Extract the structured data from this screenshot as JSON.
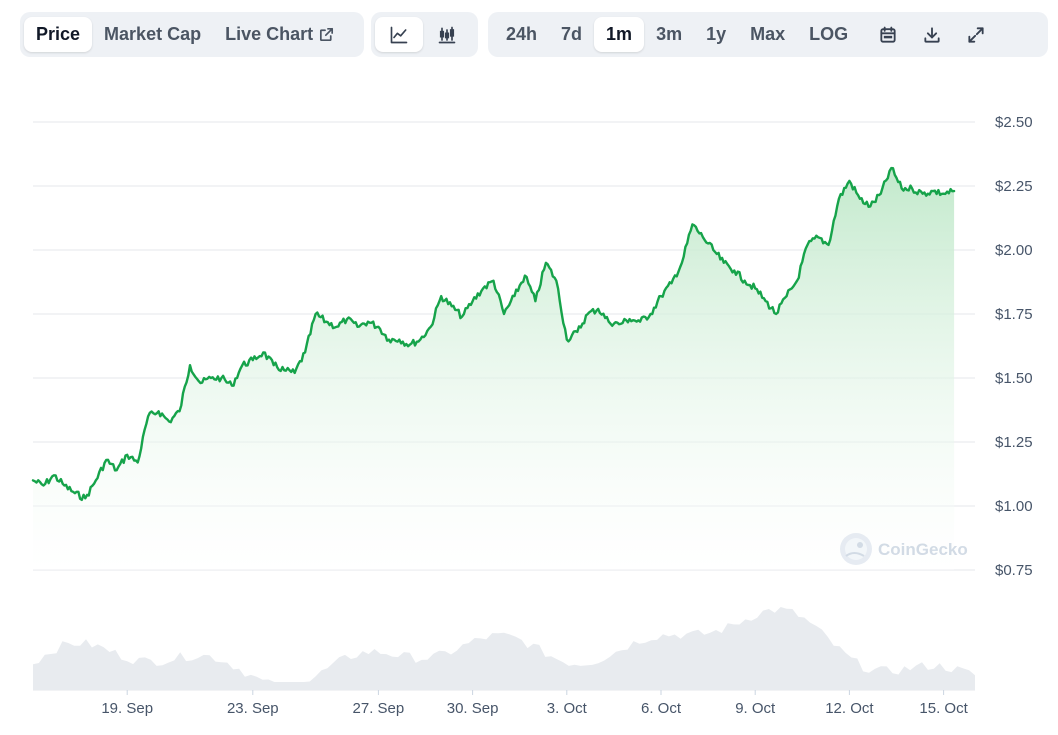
{
  "toolbar": {
    "tabs": [
      {
        "label": "Price",
        "active": true
      },
      {
        "label": "Market Cap",
        "active": false
      },
      {
        "label": "Live Chart",
        "active": false
      }
    ],
    "live_chart_icon": "external-link-icon",
    "chart_type_buttons": [
      {
        "icon": "line-chart-icon",
        "active": true
      },
      {
        "icon": "candlestick-chart-icon",
        "active": false
      }
    ],
    "ranges": [
      {
        "label": "24h",
        "active": false
      },
      {
        "label": "7d",
        "active": false
      },
      {
        "label": "1m",
        "active": true
      },
      {
        "label": "3m",
        "active": false
      },
      {
        "label": "1y",
        "active": false
      },
      {
        "label": "Max",
        "active": false
      },
      {
        "label": "LOG",
        "active": false
      }
    ],
    "tools": [
      "calendar-icon",
      "download-icon",
      "expand-icon"
    ]
  },
  "watermark": {
    "text": "CoinGecko",
    "icon": "coingecko-logo-icon"
  },
  "colors": {
    "line": "#16a34a",
    "fill_top": "#bfe8c9",
    "grid": "#e5e7eb",
    "volume": "#e8ebef",
    "toolbar_bg": "#eef1f5"
  },
  "chart_data": {
    "type": "area",
    "title": "",
    "xlabel": "",
    "ylabel": "",
    "x_range": [
      "2024-09-16",
      "2024-10-16"
    ],
    "ylim": [
      0.75,
      2.5
    ],
    "yticks": [
      0.75,
      1.0,
      1.25,
      1.5,
      1.75,
      2.0,
      2.25,
      2.5
    ],
    "ytick_labels": [
      "$0.75",
      "$1.00",
      "$1.25",
      "$1.50",
      "$1.75",
      "$2.00",
      "$2.25",
      "$2.50"
    ],
    "xticks": [
      {
        "label": "19. Sep",
        "date": "2024-09-19"
      },
      {
        "label": "23. Sep",
        "date": "2024-09-23"
      },
      {
        "label": "27. Sep",
        "date": "2024-09-27"
      },
      {
        "label": "30. Sep",
        "date": "2024-09-30"
      },
      {
        "label": "3. Oct",
        "date": "2024-10-03"
      },
      {
        "label": "6. Oct",
        "date": "2024-10-06"
      },
      {
        "label": "9. Oct",
        "date": "2024-10-09"
      },
      {
        "label": "12. Oct",
        "date": "2024-10-12"
      },
      {
        "label": "15. Oct",
        "date": "2024-10-15"
      }
    ],
    "grid": true,
    "legend": "none",
    "series": [
      {
        "points": [
          [
            "2024-09-16 00:00",
            1.1
          ],
          [
            "2024-09-16 08:00",
            1.08
          ],
          [
            "2024-09-16 16:00",
            1.12
          ],
          [
            "2024-09-17 00:00",
            1.08
          ],
          [
            "2024-09-17 08:00",
            1.05
          ],
          [
            "2024-09-17 16:00",
            1.03
          ],
          [
            "2024-09-18 00:00",
            1.1
          ],
          [
            "2024-09-18 08:00",
            1.18
          ],
          [
            "2024-09-18 16:00",
            1.14
          ],
          [
            "2024-09-19 00:00",
            1.2
          ],
          [
            "2024-09-19 08:00",
            1.17
          ],
          [
            "2024-09-19 16:00",
            1.35
          ],
          [
            "2024-09-20 00:00",
            1.37
          ],
          [
            "2024-09-20 08:00",
            1.33
          ],
          [
            "2024-09-20 16:00",
            1.37
          ],
          [
            "2024-09-21 00:00",
            1.55
          ],
          [
            "2024-09-21 08:00",
            1.48
          ],
          [
            "2024-09-21 16:00",
            1.5
          ],
          [
            "2024-09-22 00:00",
            1.5
          ],
          [
            "2024-09-22 08:00",
            1.47
          ],
          [
            "2024-09-22 16:00",
            1.55
          ],
          [
            "2024-09-23 00:00",
            1.57
          ],
          [
            "2024-09-23 08:00",
            1.6
          ],
          [
            "2024-09-23 16:00",
            1.55
          ],
          [
            "2024-09-24 00:00",
            1.53
          ],
          [
            "2024-09-24 08:00",
            1.52
          ],
          [
            "2024-09-24 16:00",
            1.6
          ],
          [
            "2024-09-25 00:00",
            1.75
          ],
          [
            "2024-09-25 08:00",
            1.72
          ],
          [
            "2024-09-25 16:00",
            1.7
          ],
          [
            "2024-09-26 00:00",
            1.73
          ],
          [
            "2024-09-26 08:00",
            1.7
          ],
          [
            "2024-09-26 16:00",
            1.72
          ],
          [
            "2024-09-27 00:00",
            1.7
          ],
          [
            "2024-09-27 08:00",
            1.65
          ],
          [
            "2024-09-27 16:00",
            1.65
          ],
          [
            "2024-09-28 00:00",
            1.63
          ],
          [
            "2024-09-28 08:00",
            1.65
          ],
          [
            "2024-09-28 16:00",
            1.7
          ],
          [
            "2024-09-29 00:00",
            1.82
          ],
          [
            "2024-09-29 08:00",
            1.78
          ],
          [
            "2024-09-29 16:00",
            1.74
          ],
          [
            "2024-09-30 00:00",
            1.8
          ],
          [
            "2024-09-30 08:00",
            1.85
          ],
          [
            "2024-09-30 16:00",
            1.88
          ],
          [
            "2024-10-01 00:00",
            1.75
          ],
          [
            "2024-10-01 08:00",
            1.82
          ],
          [
            "2024-10-01 16:00",
            1.9
          ],
          [
            "2024-10-02 00:00",
            1.8
          ],
          [
            "2024-10-02 08:00",
            1.95
          ],
          [
            "2024-10-02 16:00",
            1.88
          ],
          [
            "2024-10-03 00:00",
            1.65
          ],
          [
            "2024-10-03 08:00",
            1.68
          ],
          [
            "2024-10-03 16:00",
            1.75
          ],
          [
            "2024-10-04 00:00",
            1.77
          ],
          [
            "2024-10-04 08:00",
            1.72
          ],
          [
            "2024-10-04 16:00",
            1.71
          ],
          [
            "2024-10-05 00:00",
            1.73
          ],
          [
            "2024-10-05 08:00",
            1.72
          ],
          [
            "2024-10-05 16:00",
            1.75
          ],
          [
            "2024-10-06 00:00",
            1.82
          ],
          [
            "2024-10-06 08:00",
            1.87
          ],
          [
            "2024-10-06 16:00",
            1.95
          ],
          [
            "2024-10-07 00:00",
            2.1
          ],
          [
            "2024-10-07 08:00",
            2.05
          ],
          [
            "2024-10-07 16:00",
            2.0
          ],
          [
            "2024-10-08 00:00",
            1.95
          ],
          [
            "2024-10-08 08:00",
            1.92
          ],
          [
            "2024-10-08 16:00",
            1.88
          ],
          [
            "2024-10-09 00:00",
            1.85
          ],
          [
            "2024-10-09 08:00",
            1.8
          ],
          [
            "2024-10-09 16:00",
            1.75
          ],
          [
            "2024-10-10 00:00",
            1.82
          ],
          [
            "2024-10-10 08:00",
            1.88
          ],
          [
            "2024-10-10 16:00",
            2.02
          ],
          [
            "2024-10-11 00:00",
            2.05
          ],
          [
            "2024-10-11 08:00",
            2.02
          ],
          [
            "2024-10-11 16:00",
            2.2
          ],
          [
            "2024-10-12 00:00",
            2.27
          ],
          [
            "2024-10-12 08:00",
            2.2
          ],
          [
            "2024-10-12 16:00",
            2.17
          ],
          [
            "2024-10-13 00:00",
            2.22
          ],
          [
            "2024-10-13 08:00",
            2.32
          ],
          [
            "2024-10-13 16:00",
            2.24
          ],
          [
            "2024-10-14 00:00",
            2.24
          ],
          [
            "2024-10-14 08:00",
            2.22
          ],
          [
            "2024-10-14 16:00",
            2.23
          ],
          [
            "2024-10-15 00:00",
            2.22
          ],
          [
            "2024-10-15 08:00",
            2.23
          ]
        ]
      }
    ]
  }
}
